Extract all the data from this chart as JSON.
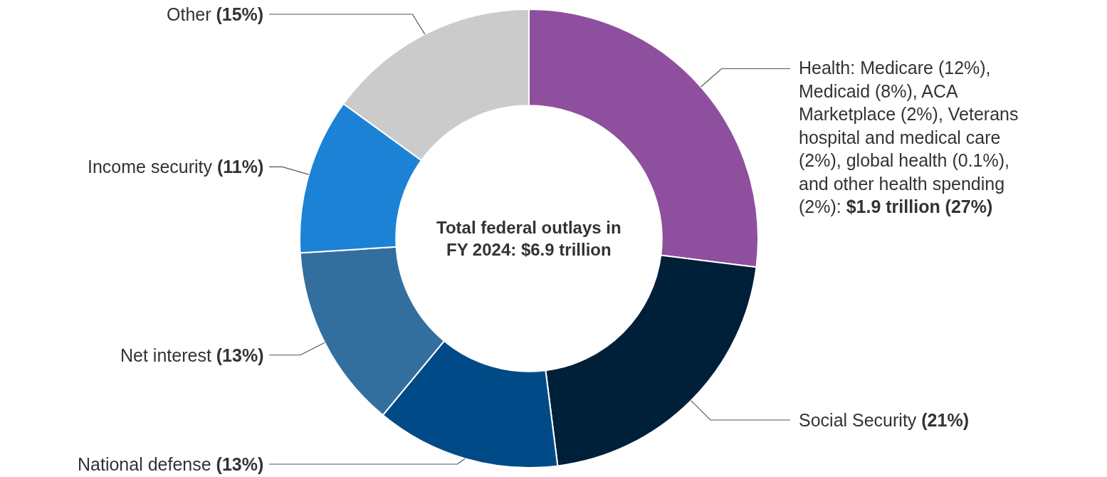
{
  "chart_data": {
    "type": "donut",
    "title": "Total federal outlays in FY 2024: $6.9 trillion",
    "categories": [
      "Health: Medicare (12%), Medicaid (8%), ACA Marketplace (2%), Veterans hospital and medical care (2%), global health (0.1%), and other health spending (2%)",
      "Social Security",
      "National defense",
      "Net interest",
      "Income security",
      "Other"
    ],
    "values": [
      27,
      21,
      13,
      13,
      11,
      15
    ],
    "value_labels": [
      ": $1.9 trillion (27%)",
      "(21%)",
      "(13%)",
      "(13%)",
      "(11%)",
      "(15%)"
    ],
    "colors": [
      "#8f4f9f",
      "#001f38",
      "#004a87",
      "#336f9e",
      "#1b82d6",
      "#cbcbcb"
    ],
    "legend": false
  }
}
